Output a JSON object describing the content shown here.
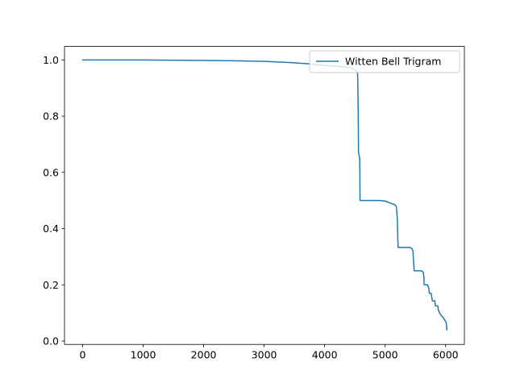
{
  "chart_data": {
    "type": "line",
    "title": "",
    "xlabel": "",
    "ylabel": "",
    "xlim": [
      -300,
      6310
    ],
    "ylim": [
      -0.012,
      1.048
    ],
    "xticks": [
      0,
      1000,
      2000,
      3000,
      4000,
      5000,
      6000
    ],
    "yticks": [
      0.0,
      0.2,
      0.4,
      0.6,
      0.8,
      1.0
    ],
    "xtick_labels": [
      "0",
      "1000",
      "2000",
      "3000",
      "4000",
      "5000",
      "6000"
    ],
    "ytick_labels": [
      "0.0",
      "0.2",
      "0.4",
      "0.6",
      "0.8",
      "1.0"
    ],
    "grid": false,
    "legend_position": "upper right",
    "series": [
      {
        "name": "Witten Bell Trigram",
        "color": "#1f77b4",
        "x": [
          0,
          1000,
          2000,
          2500,
          3000,
          3200,
          3500,
          3800,
          4000,
          4200,
          4300,
          4400,
          4450,
          4500,
          4530,
          4545,
          4550,
          4555,
          4560,
          4570,
          4580,
          4585,
          4590,
          4700,
          4900,
          5000,
          5100,
          5160,
          5180,
          5190,
          5195,
          5200,
          5205,
          5210,
          5215,
          5220,
          5300,
          5400,
          5440,
          5460,
          5470,
          5480,
          5600,
          5630,
          5640,
          5645,
          5700,
          5720,
          5730,
          5760,
          5780,
          5820,
          5830,
          5870,
          5880,
          5900,
          5930,
          5960,
          5990,
          6010,
          6020
        ],
        "y": [
          1.0,
          1.0,
          0.998,
          0.997,
          0.995,
          0.993,
          0.99,
          0.985,
          0.98,
          0.978,
          0.975,
          0.973,
          0.97,
          0.965,
          0.96,
          0.95,
          0.9,
          0.8,
          0.67,
          0.66,
          0.65,
          0.5,
          0.5,
          0.5,
          0.5,
          0.498,
          0.49,
          0.485,
          0.48,
          0.47,
          0.45,
          0.44,
          0.4,
          0.36,
          0.333,
          0.333,
          0.333,
          0.333,
          0.33,
          0.32,
          0.28,
          0.25,
          0.25,
          0.245,
          0.23,
          0.2,
          0.2,
          0.19,
          0.17,
          0.17,
          0.143,
          0.143,
          0.125,
          0.125,
          0.11,
          0.1,
          0.09,
          0.083,
          0.073,
          0.065,
          0.04
        ]
      }
    ]
  }
}
